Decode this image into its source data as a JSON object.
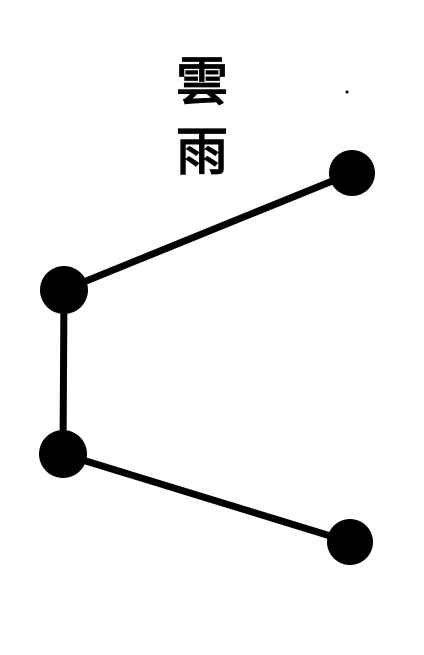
{
  "title": {
    "char_1": "雲",
    "char_2": "雨"
  },
  "diagram": {
    "nodes": [
      "node-top-right",
      "node-upper-left",
      "node-lower-left",
      "node-bottom-right"
    ],
    "edges": [
      [
        "node-upper-left",
        "node-top-right"
      ],
      [
        "node-upper-left",
        "node-lower-left"
      ],
      [
        "node-lower-left",
        "node-bottom-right"
      ]
    ],
    "ink_color": "#000000",
    "background_color": "#ffffff"
  }
}
